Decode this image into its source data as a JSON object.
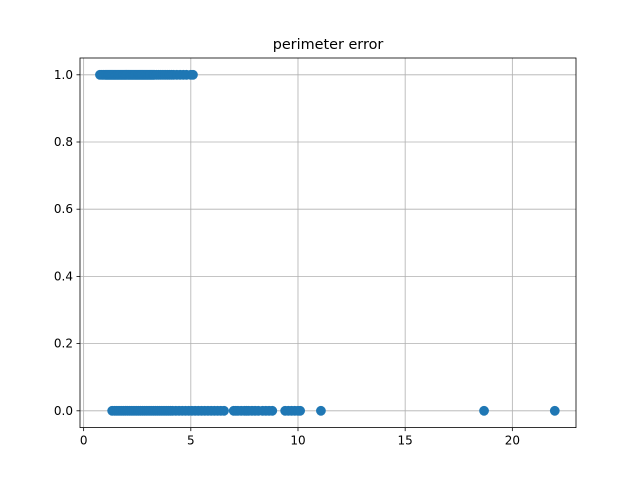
{
  "chart_data": {
    "type": "scatter",
    "title": "perimeter error",
    "xlabel": "",
    "ylabel": "",
    "xlim": [
      -0.17,
      22.97
    ],
    "ylim": [
      -0.05,
      1.05
    ],
    "grid": true,
    "xticks": [
      0,
      5,
      10,
      15,
      20
    ],
    "xtick_labels": [
      "0",
      "5",
      "10",
      "15",
      "20"
    ],
    "yticks": [
      0.0,
      0.2,
      0.4,
      0.6,
      0.8,
      1.0
    ],
    "ytick_labels": [
      "0.0",
      "0.2",
      "0.4",
      "0.6",
      "0.8",
      "1.0"
    ],
    "marker_color": "#1f77b4",
    "series": [
      {
        "x": [
          0.76,
          0.85,
          0.92,
          1.0,
          1.05,
          1.1,
          1.15,
          1.2,
          1.25,
          1.3,
          1.35,
          1.4,
          1.45,
          1.5,
          1.55,
          1.6,
          1.65,
          1.7,
          1.75,
          1.8,
          1.85,
          1.9,
          1.95,
          2.0,
          2.05,
          2.1,
          2.15,
          2.2,
          2.25,
          2.3,
          2.35,
          2.4,
          2.45,
          2.5,
          2.55,
          2.6,
          2.65,
          2.7,
          2.75,
          2.8,
          2.85,
          2.9,
          2.95,
          3.0,
          3.05,
          3.1,
          3.15,
          3.2,
          3.25,
          3.3,
          3.4,
          3.5,
          3.6,
          3.7,
          3.8,
          3.9,
          4.0,
          4.1,
          4.2,
          4.35,
          4.5,
          4.65,
          4.8,
          5.0,
          5.1
        ],
        "y": [
          1,
          1,
          1,
          1,
          1,
          1,
          1,
          1,
          1,
          1,
          1,
          1,
          1,
          1,
          1,
          1,
          1,
          1,
          1,
          1,
          1,
          1,
          1,
          1,
          1,
          1,
          1,
          1,
          1,
          1,
          1,
          1,
          1,
          1,
          1,
          1,
          1,
          1,
          1,
          1,
          1,
          1,
          1,
          1,
          1,
          1,
          1,
          1,
          1,
          1,
          1,
          1,
          1,
          1,
          1,
          1,
          1,
          1,
          1,
          1,
          1,
          1,
          1,
          1,
          1
        ]
      },
      {
        "x": [
          1.33,
          1.45,
          1.55,
          1.65,
          1.75,
          1.85,
          1.95,
          2.05,
          2.15,
          2.25,
          2.35,
          2.45,
          2.55,
          2.65,
          2.75,
          2.85,
          2.95,
          3.05,
          3.15,
          3.25,
          3.35,
          3.45,
          3.55,
          3.65,
          3.75,
          3.85,
          3.95,
          4.05,
          4.15,
          4.3,
          4.45,
          4.6,
          4.75,
          4.9,
          5.05,
          5.2,
          5.35,
          5.5,
          5.65,
          5.8,
          5.95,
          6.1,
          6.25,
          6.4,
          6.55,
          7.0,
          7.1,
          7.2,
          7.35,
          7.5,
          7.6,
          7.7,
          7.85,
          8.0,
          8.15,
          8.35,
          8.5,
          8.65,
          8.8,
          9.4,
          9.55,
          9.7,
          9.85,
          10.0,
          10.1,
          11.07,
          18.68,
          21.98
        ],
        "y": [
          0,
          0,
          0,
          0,
          0,
          0,
          0,
          0,
          0,
          0,
          0,
          0,
          0,
          0,
          0,
          0,
          0,
          0,
          0,
          0,
          0,
          0,
          0,
          0,
          0,
          0,
          0,
          0,
          0,
          0,
          0,
          0,
          0,
          0,
          0,
          0,
          0,
          0,
          0,
          0,
          0,
          0,
          0,
          0,
          0,
          0,
          0,
          0,
          0,
          0,
          0,
          0,
          0,
          0,
          0,
          0,
          0,
          0,
          0,
          0,
          0,
          0,
          0,
          0,
          0,
          0,
          0,
          0
        ]
      }
    ]
  }
}
